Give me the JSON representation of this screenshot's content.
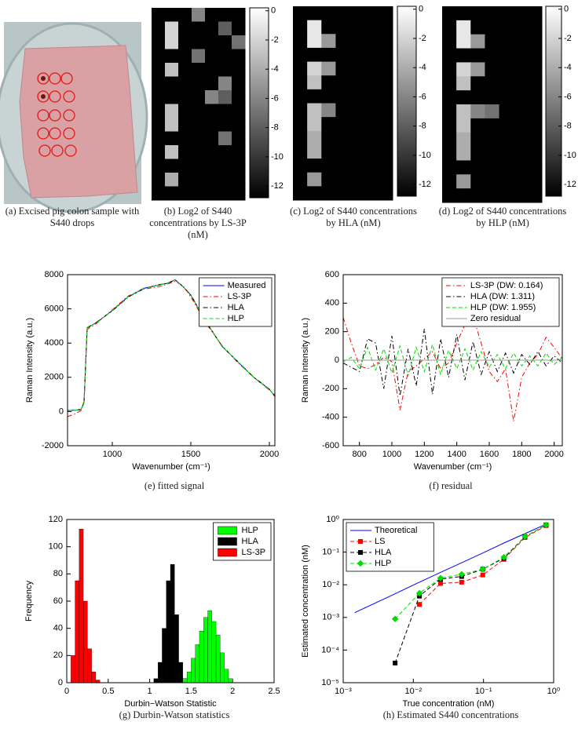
{
  "chart_data": [
    {
      "type": "image",
      "caption": "(a) Excised pig colon sample with S440 drops"
    },
    {
      "type": "heatmap",
      "caption": "(b) Log2 of S440 concentrations by LS-3P (nM)",
      "clim": [
        -12.8,
        0.2
      ],
      "cticks": [
        0,
        -2,
        -4,
        -6,
        -8,
        -10,
        -12
      ],
      "z": [
        [
          -13,
          -13,
          -13,
          -6,
          -13,
          -13,
          -13
        ],
        [
          -13,
          -2,
          -13,
          -13,
          -13,
          -8,
          -13
        ],
        [
          -13,
          -2,
          -13,
          -13,
          -13,
          -13,
          -7
        ],
        [
          -13,
          -13,
          -13,
          -7,
          -13,
          -13,
          -13
        ],
        [
          -13,
          -3,
          -13,
          -13,
          -13,
          -13,
          -13
        ],
        [
          -13,
          -13,
          -13,
          -13,
          -13,
          -6,
          -13
        ],
        [
          -13,
          -13,
          -13,
          -13,
          -6,
          -8,
          -13
        ],
        [
          -13,
          -3,
          -13,
          -13,
          -13,
          -13,
          -13
        ],
        [
          -13,
          -3,
          -13,
          -13,
          -13,
          -13,
          -13
        ],
        [
          -13,
          -13,
          -13,
          -13,
          -13,
          -7,
          -13
        ],
        [
          -13,
          -3,
          -13,
          -13,
          -13,
          -13,
          -13
        ],
        [
          -13,
          -13,
          -13,
          -13,
          -13,
          -13,
          -13
        ],
        [
          -13,
          -4,
          -13,
          -13,
          -13,
          -13,
          -13
        ],
        [
          -13,
          -13,
          -13,
          -13,
          -13,
          -13,
          -13
        ]
      ]
    },
    {
      "type": "heatmap",
      "caption": "(c) Log2 of S440 concentrations by HLA (nM)",
      "clim": [
        -12.8,
        0.2
      ],
      "cticks": [
        0,
        -2,
        -4,
        -6,
        -8,
        -10,
        -12
      ],
      "z": [
        [
          -13,
          -13,
          -13,
          -13,
          -13,
          -13,
          -13
        ],
        [
          -13,
          -1,
          -13,
          -13,
          -13,
          -13,
          -13
        ],
        [
          -13,
          -1,
          -5,
          -13,
          -13,
          -13,
          -13
        ],
        [
          -13,
          -13,
          -13,
          -13,
          -13,
          -13,
          -13
        ],
        [
          -13,
          -2,
          -5,
          -13,
          -13,
          -13,
          -13
        ],
        [
          -13,
          -3,
          -13,
          -13,
          -13,
          -13,
          -13
        ],
        [
          -13,
          -13,
          -13,
          -13,
          -13,
          -13,
          -13
        ],
        [
          -13,
          -3,
          -6,
          -13,
          -13,
          -13,
          -13
        ],
        [
          -13,
          -3,
          -13,
          -13,
          -13,
          -13,
          -13
        ],
        [
          -13,
          -4,
          -13,
          -13,
          -13,
          -13,
          -13
        ],
        [
          -13,
          -4,
          -13,
          -13,
          -13,
          -13,
          -13
        ],
        [
          -13,
          -13,
          -13,
          -13,
          -13,
          -13,
          -13
        ],
        [
          -13,
          -5,
          -13,
          -13,
          -13,
          -13,
          -13
        ],
        [
          -13,
          -13,
          -13,
          -13,
          -13,
          -13,
          -13
        ]
      ]
    },
    {
      "type": "heatmap",
      "caption": "(d) Log2 of S440 concentrations by HLP (nM)",
      "clim": [
        -12.8,
        0.2
      ],
      "cticks": [
        0,
        -2,
        -4,
        -6,
        -8,
        -10,
        -12
      ],
      "z": [
        [
          -13,
          -13,
          -13,
          -13,
          -13,
          -13,
          -13
        ],
        [
          -13,
          -1,
          -13,
          -13,
          -13,
          -13,
          -13
        ],
        [
          -13,
          -1,
          -5,
          -13,
          -13,
          -13,
          -13
        ],
        [
          -13,
          -13,
          -13,
          -13,
          -13,
          -13,
          -13
        ],
        [
          -13,
          -2,
          -5,
          -13,
          -13,
          -13,
          -13
        ],
        [
          -13,
          -3,
          -13,
          -13,
          -13,
          -13,
          -13
        ],
        [
          -13,
          -13,
          -13,
          -13,
          -13,
          -13,
          -13
        ],
        [
          -13,
          -3,
          -6,
          -7,
          -13,
          -13,
          -13
        ],
        [
          -13,
          -3,
          -13,
          -13,
          -13,
          -13,
          -13
        ],
        [
          -13,
          -4,
          -13,
          -13,
          -13,
          -13,
          -13
        ],
        [
          -13,
          -4,
          -13,
          -13,
          -13,
          -13,
          -13
        ],
        [
          -13,
          -13,
          -13,
          -13,
          -13,
          -13,
          -13
        ],
        [
          -13,
          -5,
          -13,
          -13,
          -13,
          -13,
          -13
        ],
        [
          -13,
          -13,
          -13,
          -13,
          -13,
          -13,
          -13
        ]
      ]
    },
    {
      "type": "line",
      "caption": "(e) fitted signal",
      "xlabel": "Wavenumber (cm⁻¹)",
      "ylabel": "Raman Intensity (a.u.)",
      "xlim": [
        715,
        2035
      ],
      "xticks": [
        1000,
        1500,
        2000
      ],
      "ylim": [
        -2000,
        8000
      ],
      "yticks": [
        -2000,
        0,
        2000,
        4000,
        6000,
        8000
      ],
      "legend": "ne",
      "x": [
        715,
        760,
        800,
        820,
        840,
        900,
        1000,
        1100,
        1200,
        1300,
        1350,
        1400,
        1450,
        1500,
        1600,
        1700,
        1800,
        1900,
        2000,
        2035
      ],
      "series": [
        {
          "name": "Measured",
          "color": "#0000ff",
          "style": "-",
          "values": [
            50,
            80,
            120,
            500,
            4900,
            5200,
            5900,
            6700,
            7200,
            7400,
            7500,
            7700,
            7300,
            6800,
            5200,
            3800,
            2900,
            2000,
            1300,
            900
          ]
        },
        {
          "name": "LS-3P",
          "color": "#ff0000",
          "style": "-.",
          "values": [
            -300,
            -150,
            50,
            600,
            4800,
            5150,
            5950,
            6750,
            7150,
            7300,
            7450,
            7600,
            7350,
            6700,
            5100,
            3850,
            2850,
            2000,
            1250,
            950
          ]
        },
        {
          "name": "HLA",
          "color": "#000000",
          "style": "-.",
          "values": [
            60,
            70,
            110,
            520,
            4880,
            5220,
            5880,
            6680,
            7180,
            7420,
            7480,
            7680,
            7310,
            6820,
            5210,
            3790,
            2910,
            2010,
            1310,
            880
          ]
        },
        {
          "name": "HLP",
          "color": "#00dd00",
          "style": "--",
          "values": [
            40,
            80,
            130,
            480,
            4920,
            5180,
            5910,
            6710,
            7190,
            7390,
            7510,
            7690,
            7290,
            6790,
            5190,
            3810,
            2890,
            1990,
            1290,
            910
          ]
        }
      ]
    },
    {
      "type": "line",
      "caption": "(f) residual",
      "xlabel": "Wavenumber (cm⁻¹)",
      "ylabel": "Raman Intensity (a.u.)",
      "xlim": [
        700,
        2050
      ],
      "xticks": [
        800,
        1000,
        1200,
        1400,
        1600,
        1800,
        2000
      ],
      "ylim": [
        -600,
        600
      ],
      "yticks": [
        -600,
        -400,
        -200,
        0,
        200,
        400,
        600
      ],
      "legend": "ne",
      "x": [
        700,
        750,
        800,
        850,
        900,
        950,
        1000,
        1050,
        1100,
        1150,
        1200,
        1250,
        1300,
        1350,
        1400,
        1450,
        1500,
        1550,
        1600,
        1650,
        1700,
        1750,
        1800,
        1850,
        1900,
        1950,
        2000,
        2050
      ],
      "series": [
        {
          "name": "LS-3P (DW: 0.164)",
          "color": "#ff0000",
          "style": "-.",
          "values": [
            300,
            120,
            -40,
            -60,
            -30,
            20,
            -10,
            -350,
            -80,
            -40,
            10,
            60,
            -60,
            -20,
            120,
            250,
            310,
            120,
            -80,
            -150,
            -60,
            -430,
            -120,
            -20,
            40,
            160,
            90,
            10
          ]
        },
        {
          "name": "HLA (DW: 1.311)",
          "color": "#000000",
          "style": "-.",
          "values": [
            -20,
            -50,
            -80,
            150,
            120,
            -200,
            170,
            -250,
            80,
            -180,
            220,
            -240,
            150,
            -120,
            180,
            -140,
            130,
            -100,
            60,
            -80,
            50,
            -90,
            40,
            -30,
            60,
            -40,
            30,
            -20
          ]
        },
        {
          "name": "HLP (DW: 1.955)",
          "color": "#00dd00",
          "style": "--",
          "values": [
            -10,
            20,
            -60,
            90,
            -70,
            80,
            -90,
            100,
            -110,
            90,
            -80,
            110,
            -100,
            70,
            -60,
            80,
            -70,
            60,
            -50,
            40,
            -60,
            50,
            -40,
            30,
            -40,
            50,
            -30,
            20
          ]
        },
        {
          "name": "Zero residual",
          "color": "#999999",
          "style": "-",
          "values": [
            0,
            0,
            0,
            0,
            0,
            0,
            0,
            0,
            0,
            0,
            0,
            0,
            0,
            0,
            0,
            0,
            0,
            0,
            0,
            0,
            0,
            0,
            0,
            0,
            0,
            0,
            0,
            0
          ]
        }
      ]
    },
    {
      "type": "histogram",
      "caption": "(g) Durbin-Watson statistics",
      "xlabel": "Durbin−Watson Statistic",
      "ylabel": "Frequency",
      "xlim": [
        0,
        2.5
      ],
      "xticks": [
        0,
        0.5,
        1,
        1.5,
        2,
        2.5
      ],
      "ylim": [
        0,
        120
      ],
      "yticks": [
        0,
        20,
        40,
        60,
        80,
        100,
        120
      ],
      "legend": "ne",
      "bins": [
        0,
        0.05,
        0.1,
        0.15,
        0.2,
        0.25,
        0.3,
        0.35,
        0.4,
        0.45,
        0.5,
        0.55,
        0.6,
        0.65,
        0.7,
        0.75,
        0.8,
        0.85,
        0.9,
        0.95,
        1,
        1.05,
        1.1,
        1.15,
        1.2,
        1.25,
        1.3,
        1.35,
        1.4,
        1.45,
        1.5,
        1.55,
        1.6,
        1.65,
        1.7,
        1.75,
        1.8,
        1.85,
        1.9,
        1.95,
        2,
        2.05,
        2.1,
        2.15,
        2.2,
        2.25,
        2.3,
        2.35,
        2.4,
        2.45,
        2.5
      ],
      "series": [
        {
          "name": "HLP",
          "color": "#00ff00",
          "values": [
            0,
            0,
            0,
            0,
            0,
            0,
            0,
            0,
            0,
            0,
            0,
            0,
            0,
            0,
            0,
            0,
            0,
            0,
            0,
            0,
            0,
            0,
            0,
            0,
            0,
            0,
            0,
            0,
            3,
            8,
            18,
            28,
            38,
            48,
            53,
            45,
            35,
            22,
            10,
            3,
            0,
            0,
            0,
            0,
            0,
            0,
            0,
            0,
            0,
            0
          ]
        },
        {
          "name": "HLA",
          "color": "#000000",
          "values": [
            0,
            0,
            0,
            0,
            0,
            0,
            0,
            0,
            0,
            0,
            0,
            0,
            0,
            0,
            0,
            0,
            0,
            0,
            0,
            0,
            0,
            3,
            15,
            40,
            75,
            87,
            50,
            15,
            3,
            0,
            0,
            0,
            0,
            0,
            0,
            0,
            0,
            0,
            0,
            0,
            0,
            0,
            0,
            0,
            0,
            0,
            0,
            0,
            0,
            0
          ]
        },
        {
          "name": "LS-3P",
          "color": "#ff0000",
          "values": [
            0,
            20,
            75,
            113,
            60,
            25,
            8,
            2,
            0,
            0,
            0,
            0,
            0,
            0,
            0,
            0,
            0,
            0,
            0,
            0,
            0,
            0,
            0,
            0,
            0,
            0,
            0,
            0,
            0,
            0,
            0,
            0,
            0,
            0,
            0,
            0,
            0,
            0,
            0,
            0,
            0,
            0,
            0,
            0,
            0,
            0,
            0,
            0,
            0,
            0
          ]
        }
      ]
    },
    {
      "type": "line",
      "caption": "(h) Estimated S440 concentrations",
      "xlabel": "True concentration (nM)",
      "ylabel": "Estimated concentration (nM)",
      "xlog": true,
      "ylog": true,
      "legend": "nw",
      "xlim": [
        0.001,
        1
      ],
      "xticks": [
        {
          "value": 0.001,
          "label": "10⁻³"
        },
        {
          "value": 0.01,
          "label": "10⁻²"
        },
        {
          "value": 0.1,
          "label": "10⁻¹"
        },
        {
          "value": 1,
          "label": "10⁰"
        }
      ],
      "ylim": [
        1e-05,
        1
      ],
      "yticks": [
        {
          "value": 1e-05,
          "label": "10⁻⁵"
        },
        {
          "value": 0.0001,
          "label": "10⁻⁴"
        },
        {
          "value": 0.001,
          "label": "10⁻³"
        },
        {
          "value": 0.01,
          "label": "10⁻²"
        },
        {
          "value": 0.1,
          "label": "10⁻¹"
        },
        {
          "value": 1,
          "label": "10⁰"
        }
      ],
      "x": [
        0.00146,
        0.0055,
        0.0122,
        0.0244,
        0.0488,
        0.0977,
        0.195,
        0.39,
        0.78
      ],
      "series": [
        {
          "name": "Theoretical",
          "color": "#0000ff",
          "style": "-",
          "values": [
            0.0014,
            0.0053,
            0.012,
            0.024,
            0.047,
            0.094,
            0.19,
            0.37,
            0.72
          ]
        },
        {
          "name": "LS",
          "color": "#ff0000",
          "style": "--",
          "marker": "s",
          "values": [
            null,
            null,
            0.0025,
            0.011,
            0.012,
            0.02,
            0.06,
            0.28,
            0.65
          ]
        },
        {
          "name": "HLA",
          "color": "#000000",
          "style": "--",
          "marker": "s",
          "values": [
            null,
            4e-05,
            0.0045,
            0.015,
            0.018,
            0.03,
            0.065,
            0.3,
            0.68
          ]
        },
        {
          "name": "HLP",
          "color": "#00dd00",
          "style": "--",
          "marker": "d",
          "values": [
            null,
            0.0009,
            0.0055,
            0.016,
            0.021,
            0.03,
            0.07,
            0.3,
            0.68
          ]
        }
      ]
    }
  ]
}
